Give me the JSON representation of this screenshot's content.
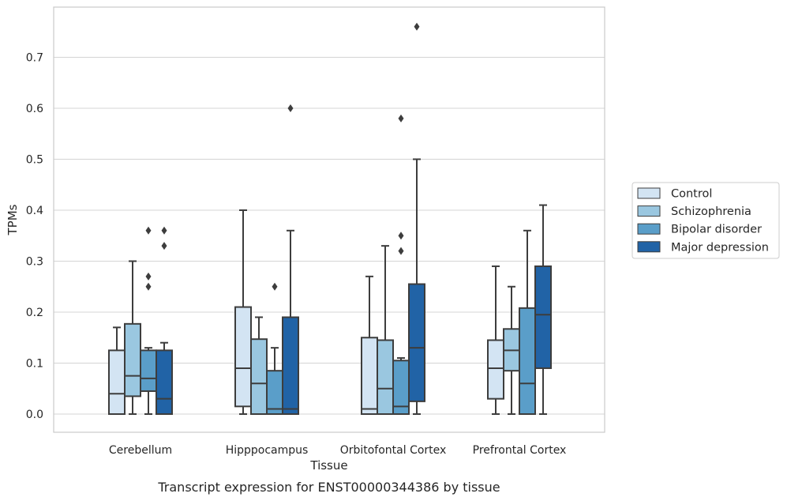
{
  "chart_data": {
    "type": "box",
    "title": "",
    "caption": "Transcript expression for ENST00000344386 by tissue",
    "xlabel": "Tissue",
    "ylabel": "TPMs",
    "ylim": [
      -0.04,
      0.8
    ],
    "yticks": [
      "0.0",
      "0.1",
      "0.2",
      "0.3",
      "0.4",
      "0.5",
      "0.6",
      "0.7"
    ],
    "grid": "horizontal",
    "legend_position": "right",
    "categories": [
      "Cerebellum",
      "Hipppocampus",
      "Orbitofontal Cortex",
      "Prefrontal Cortex"
    ],
    "series": [
      {
        "name": "Control",
        "color": "#d3e4f3",
        "boxes": [
          {
            "min": 0.0,
            "q1": 0.0,
            "median": 0.04,
            "q3": 0.125,
            "max": 0.17,
            "outliers": []
          },
          {
            "min": 0.0,
            "q1": 0.015,
            "median": 0.09,
            "q3": 0.21,
            "max": 0.4,
            "outliers": []
          },
          {
            "min": 0.0,
            "q1": 0.0,
            "median": 0.01,
            "q3": 0.15,
            "max": 0.27,
            "outliers": []
          },
          {
            "min": 0.0,
            "q1": 0.03,
            "median": 0.09,
            "q3": 0.145,
            "max": 0.29,
            "outliers": []
          }
        ]
      },
      {
        "name": "Schizophrenia",
        "color": "#9ac7e0",
        "boxes": [
          {
            "min": 0.0,
            "q1": 0.035,
            "median": 0.075,
            "q3": 0.177,
            "max": 0.3,
            "outliers": []
          },
          {
            "min": 0.0,
            "q1": 0.0,
            "median": 0.06,
            "q3": 0.147,
            "max": 0.19,
            "outliers": []
          },
          {
            "min": 0.0,
            "q1": 0.0,
            "median": 0.05,
            "q3": 0.145,
            "max": 0.33,
            "outliers": []
          },
          {
            "min": 0.0,
            "q1": 0.085,
            "median": 0.125,
            "q3": 0.167,
            "max": 0.25,
            "outliers": []
          }
        ]
      },
      {
        "name": "Bipolar disorder",
        "color": "#5a9ec9",
        "boxes": [
          {
            "min": 0.0,
            "q1": 0.045,
            "median": 0.07,
            "q3": 0.125,
            "max": 0.13,
            "outliers": [
              0.36,
              0.27,
              0.25
            ]
          },
          {
            "min": 0.0,
            "q1": 0.0,
            "median": 0.01,
            "q3": 0.085,
            "max": 0.13,
            "outliers": [
              0.25
            ]
          },
          {
            "min": 0.0,
            "q1": 0.0,
            "median": 0.015,
            "q3": 0.105,
            "max": 0.11,
            "outliers": [
              0.58,
              0.35,
              0.32
            ]
          },
          {
            "min": 0.0,
            "q1": 0.0,
            "median": 0.06,
            "q3": 0.208,
            "max": 0.36,
            "outliers": []
          }
        ]
      },
      {
        "name": "Major depression",
        "color": "#2163a6",
        "boxes": [
          {
            "min": 0.0,
            "q1": 0.0,
            "median": 0.03,
            "q3": 0.125,
            "max": 0.14,
            "outliers": [
              0.36,
              0.33
            ]
          },
          {
            "min": 0.0,
            "q1": 0.0,
            "median": 0.01,
            "q3": 0.19,
            "max": 0.36,
            "outliers": [
              0.6
            ]
          },
          {
            "min": 0.0,
            "q1": 0.025,
            "median": 0.13,
            "q3": 0.255,
            "max": 0.5,
            "outliers": [
              0.76
            ]
          },
          {
            "min": 0.0,
            "q1": 0.09,
            "median": 0.195,
            "q3": 0.29,
            "max": 0.41,
            "outliers": []
          }
        ]
      }
    ]
  }
}
